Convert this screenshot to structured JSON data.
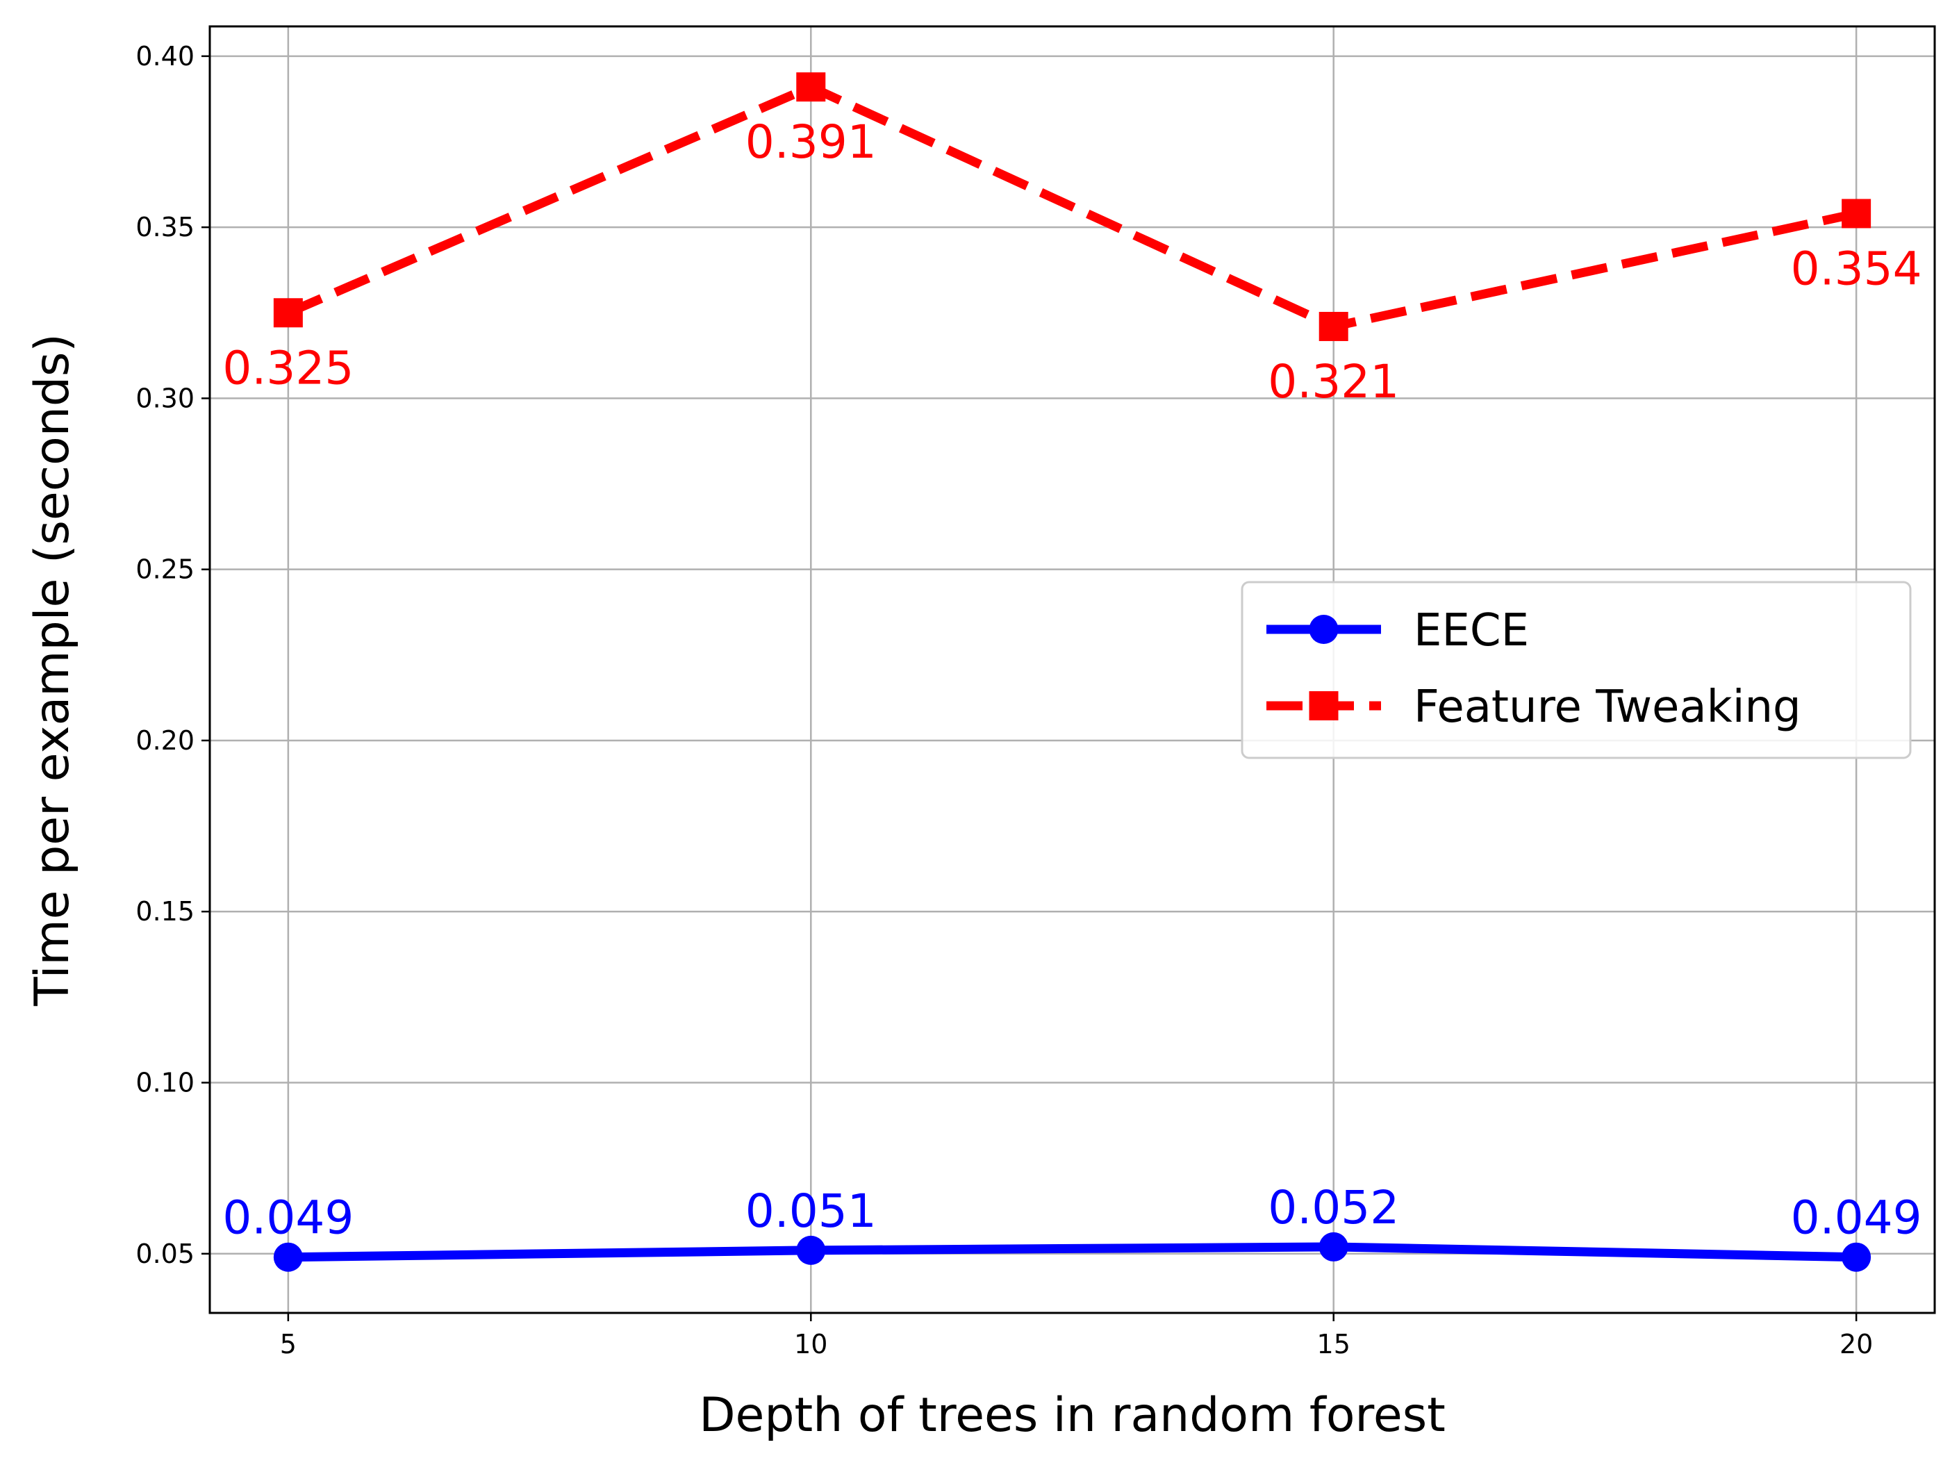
{
  "chart_data": {
    "type": "line",
    "title": "",
    "xlabel": "Depth of trees in random forest",
    "ylabel": "Time per example (seconds)",
    "x": [
      5,
      10,
      15,
      20
    ],
    "xticks": [
      "5",
      "10",
      "15",
      "20"
    ],
    "yticks": [
      "0.05",
      "0.10",
      "0.15",
      "0.20",
      "0.25",
      "0.30",
      "0.35",
      "0.40"
    ],
    "xlim": [
      4.25,
      20.75
    ],
    "ylim": [
      0.0327,
      0.4087
    ],
    "grid": true,
    "legend_position": "center-right",
    "series": [
      {
        "name": "EECE",
        "values": [
          0.049,
          0.051,
          0.052,
          0.049
        ],
        "labels": [
          "0.049",
          "0.051",
          "0.052",
          "0.049"
        ],
        "color": "#0000ff",
        "line_style": "solid",
        "marker": "circle",
        "label_position": "above"
      },
      {
        "name": "Feature Tweaking",
        "values": [
          0.325,
          0.391,
          0.321,
          0.354
        ],
        "labels": [
          "0.325",
          "0.391",
          "0.321",
          "0.354"
        ],
        "color": "#ff0000",
        "line_style": "dashed",
        "marker": "square",
        "label_position": "below"
      }
    ]
  }
}
